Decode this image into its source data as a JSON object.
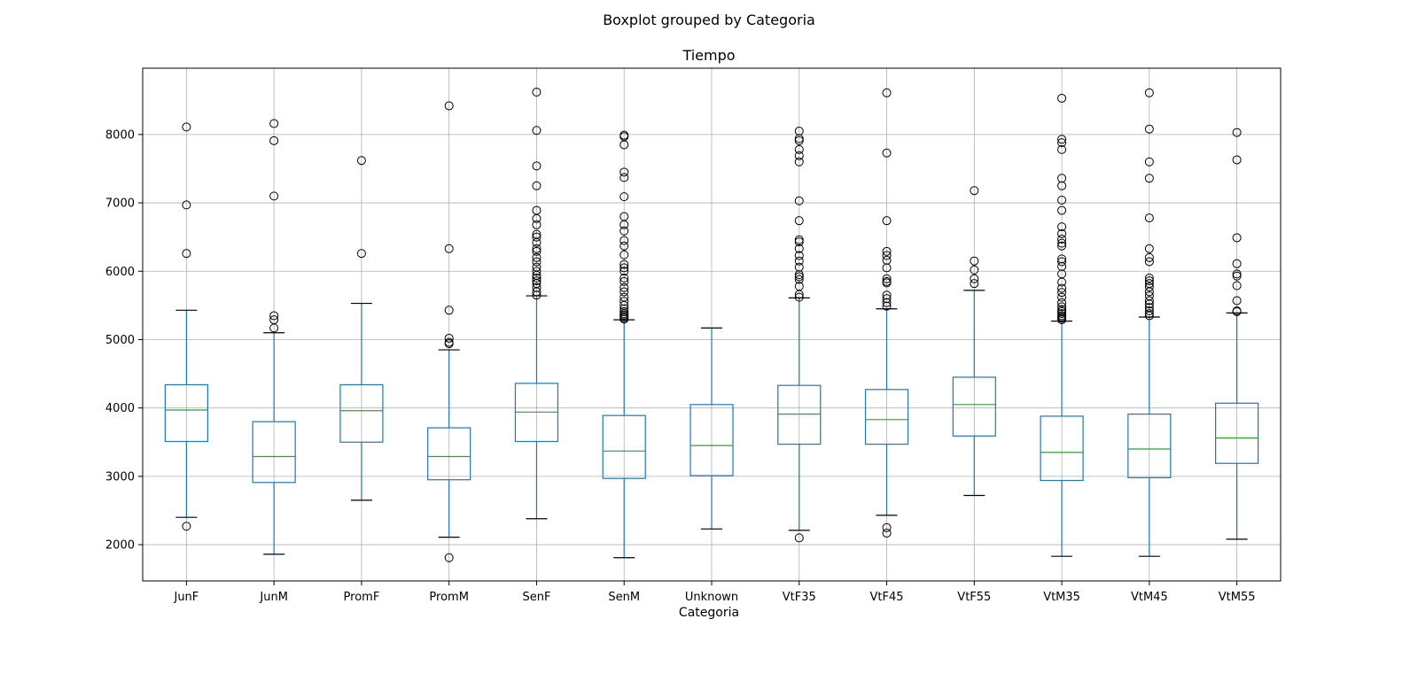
{
  "chart_data": {
    "type": "boxplot",
    "suptitle": "Boxplot grouped by Categoria",
    "title": "Tiempo",
    "xlabel": "Categoria",
    "ylabel": "",
    "ylim": [
      1470,
      8970
    ],
    "yticks": [
      2000,
      3000,
      4000,
      5000,
      6000,
      7000,
      8000
    ],
    "grid": true,
    "colors": {
      "box": "#1f77b4",
      "median": "#2ca02c",
      "cap": "#000000",
      "flier": "#000000",
      "grid": "#b0b0b0"
    },
    "categories": [
      "JunF",
      "JunM",
      "PromF",
      "PromM",
      "SenF",
      "SenM",
      "Unknown",
      "VtF35",
      "VtF45",
      "VtF55",
      "VtM35",
      "VtM45",
      "VtM55"
    ],
    "boxes": [
      {
        "label": "JunF",
        "whislo": 2400,
        "q1": 3510,
        "med": 3970,
        "q3": 4340,
        "whishi": 5430,
        "fliers": [
          2270,
          6260,
          6970,
          8110
        ]
      },
      {
        "label": "JunM",
        "whislo": 1860,
        "q1": 2910,
        "med": 3290,
        "q3": 3800,
        "whishi": 5100,
        "fliers": [
          5170,
          5290,
          5350,
          7100,
          7910,
          8160
        ]
      },
      {
        "label": "PromF",
        "whislo": 2650,
        "q1": 3500,
        "med": 3960,
        "q3": 4340,
        "whishi": 5530,
        "fliers": [
          6260,
          7620
        ]
      },
      {
        "label": "PromM",
        "whislo": 2110,
        "q1": 2950,
        "med": 3290,
        "q3": 3710,
        "whishi": 4850,
        "fliers": [
          1810,
          4940,
          4960,
          5020,
          5430,
          6330,
          8420
        ]
      },
      {
        "label": "SenF",
        "whislo": 2380,
        "q1": 3510,
        "med": 3940,
        "q3": 4360,
        "whishi": 5640,
        "fliers": [
          5650,
          5700,
          5760,
          5820,
          5860,
          5900,
          5940,
          6000,
          6060,
          6140,
          6200,
          6290,
          6330,
          6420,
          6500,
          6540,
          6680,
          6770,
          6890,
          7250,
          7540,
          8060,
          8620
        ]
      },
      {
        "label": "SenM",
        "whislo": 1810,
        "q1": 2970,
        "med": 3370,
        "q3": 3890,
        "whishi": 5290,
        "fliers": [
          5300,
          5320,
          5340,
          5360,
          5380,
          5410,
          5450,
          5500,
          5560,
          5620,
          5700,
          5760,
          5850,
          5900,
          6000,
          6050,
          6100,
          6240,
          6370,
          6450,
          6590,
          6680,
          6800,
          7090,
          7370,
          7450,
          7850,
          7970,
          7990
        ]
      },
      {
        "label": "Unknown",
        "whislo": 2230,
        "q1": 3010,
        "med": 3450,
        "q3": 4050,
        "whishi": 5170,
        "fliers": []
      },
      {
        "label": "VtF35",
        "whislo": 2210,
        "q1": 3470,
        "med": 3910,
        "q3": 4330,
        "whishi": 5610,
        "fliers": [
          2100,
          5620,
          5660,
          5780,
          5880,
          5920,
          5950,
          6060,
          6150,
          6230,
          6330,
          6430,
          6460,
          6740,
          7030,
          7600,
          7690,
          7780,
          7910,
          7940,
          8050
        ]
      },
      {
        "label": "VtF45",
        "whislo": 2430,
        "q1": 3470,
        "med": 3830,
        "q3": 4270,
        "whishi": 5450,
        "fliers": [
          2170,
          2250,
          5490,
          5540,
          5600,
          5650,
          5830,
          5850,
          5890,
          6050,
          6160,
          6230,
          6290,
          6740,
          7730,
          8610
        ]
      },
      {
        "label": "VtF55",
        "whislo": 2720,
        "q1": 3590,
        "med": 4050,
        "q3": 4450,
        "whishi": 5720,
        "fliers": [
          5820,
          5890,
          6020,
          6150,
          7180
        ]
      },
      {
        "label": "VtM35",
        "whislo": 1830,
        "q1": 2940,
        "med": 3350,
        "q3": 3880,
        "whishi": 5270,
        "fliers": [
          5290,
          5310,
          5330,
          5350,
          5380,
          5410,
          5440,
          5480,
          5540,
          5620,
          5690,
          5750,
          5840,
          5960,
          6070,
          6140,
          6180,
          6370,
          6410,
          6470,
          6550,
          6650,
          6890,
          7040,
          7250,
          7360,
          7780,
          7880,
          7930,
          8530
        ]
      },
      {
        "label": "VtM45",
        "whislo": 1830,
        "q1": 2980,
        "med": 3400,
        "q3": 3910,
        "whishi": 5330,
        "fliers": [
          5350,
          5380,
          5420,
          5470,
          5520,
          5570,
          5640,
          5700,
          5770,
          5820,
          5860,
          5900,
          6140,
          6200,
          6330,
          6780,
          7360,
          7600,
          8080,
          8610
        ]
      },
      {
        "label": "VtM55",
        "whislo": 2080,
        "q1": 3190,
        "med": 3560,
        "q3": 4070,
        "whishi": 5390,
        "fliers": [
          5410,
          5420,
          5570,
          5790,
          5930,
          5960,
          6110,
          6490,
          7630,
          8030
        ]
      }
    ]
  }
}
